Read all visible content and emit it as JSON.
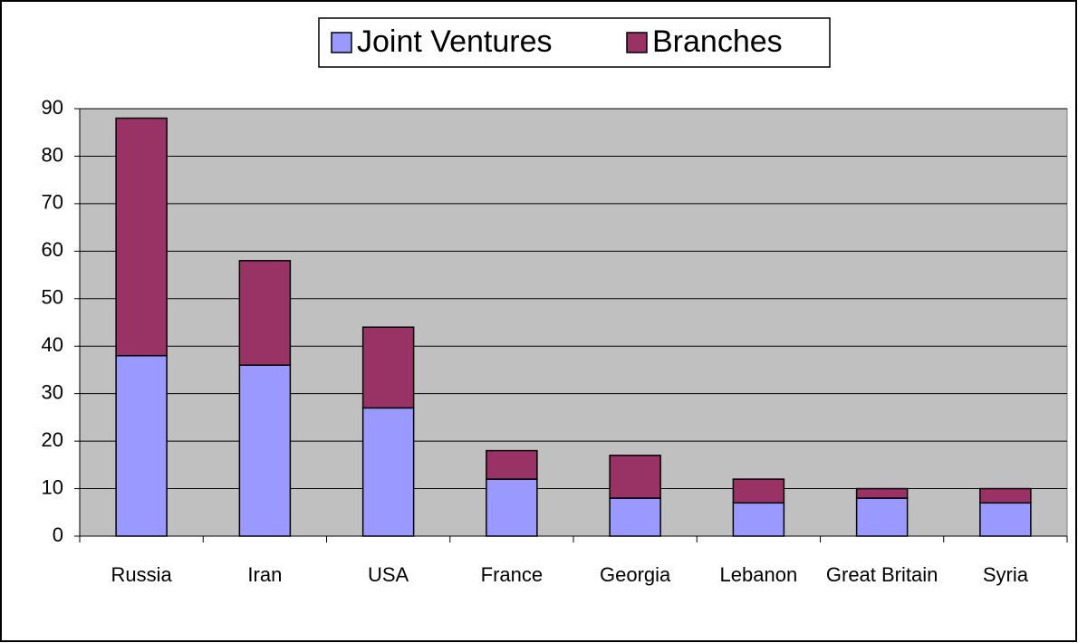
{
  "chart_data": {
    "type": "bar",
    "stacked": true,
    "categories": [
      "Russia",
      "Iran",
      "USA",
      "France",
      "Georgia",
      "Lebanon",
      "Great Britain",
      "Syria"
    ],
    "series": [
      {
        "name": "Joint Ventures",
        "color": "#9999ff",
        "values": [
          38,
          36,
          27,
          12,
          8,
          7,
          8,
          7
        ]
      },
      {
        "name": "Branches",
        "color": "#993366",
        "values": [
          50,
          22,
          17,
          6,
          9,
          5,
          2,
          3
        ]
      }
    ],
    "ylim": [
      0,
      90
    ],
    "yticks": [
      0,
      10,
      20,
      30,
      40,
      50,
      60,
      70,
      80,
      90
    ],
    "grid": true,
    "plot_background": "#c0c0c0",
    "legend": "top"
  }
}
